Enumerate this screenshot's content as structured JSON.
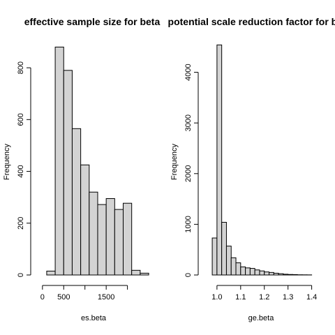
{
  "chart_data": [
    {
      "type": "bar",
      "title": "effective sample size for beta",
      "xlabel": "es.beta",
      "ylabel": "Frequency",
      "bin_width": 200,
      "bin_start": 100,
      "values": [
        15,
        880,
        790,
        565,
        425,
        320,
        272,
        295,
        253,
        277,
        18,
        7
      ],
      "xticks": [
        0,
        500,
        1000,
        1500,
        2000
      ],
      "xtick_labels": [
        "0",
        "500",
        "",
        "1500",
        ""
      ],
      "yticks": [
        0,
        200,
        400,
        600,
        800
      ],
      "xlim": [
        -30,
        2450
      ],
      "ylim": [
        0,
        900
      ]
    },
    {
      "type": "bar",
      "title": "potential scale reduction factor for beta",
      "xlabel": "ge.beta",
      "ylabel": "Frequency",
      "bin_width": 0.02,
      "bin_start": 0.98,
      "values": [
        730,
        4540,
        1040,
        570,
        340,
        240,
        160,
        140,
        130,
        100,
        80,
        60,
        50,
        35,
        25,
        15,
        10,
        8,
        4,
        3,
        2
      ],
      "xticks": [
        1.0,
        1.1,
        1.2,
        1.3,
        1.4
      ],
      "xtick_labels": [
        "1.0",
        "1.1",
        "1.2",
        "1.3",
        "1.4"
      ],
      "yticks": [
        0,
        1000,
        2000,
        3000,
        4000
      ],
      "xlim": [
        0.965,
        1.41
      ],
      "ylim": [
        0,
        4600
      ]
    }
  ]
}
